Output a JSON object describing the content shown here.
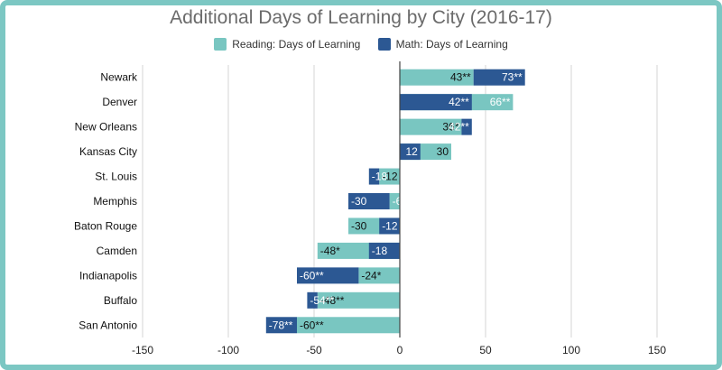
{
  "colors": {
    "reading": "#79c6c1",
    "math": "#2c5893",
    "border": "#7cc7c3",
    "grid": "#d6d6d6",
    "axis": "#444444"
  },
  "chart_data": {
    "type": "bar",
    "orientation": "horizontal",
    "stacked": "overlay",
    "title": "Additional Days of Learning by City (2016-17)",
    "legend_position": "top",
    "grid": true,
    "xlim": [
      -150,
      150
    ],
    "x_ticks": [
      "-150",
      "-100",
      "-50",
      "0",
      "50",
      "100",
      "150"
    ],
    "x_tick_values": [
      -150,
      -100,
      -50,
      0,
      50,
      100,
      150
    ],
    "categories": [
      "Newark",
      "Denver",
      "New Orleans",
      "Kansas City",
      "St. Louis",
      "Memphis",
      "Baton Rouge",
      "Camden",
      "Indianapolis",
      "Buffalo",
      "San Antonio"
    ],
    "series": [
      {
        "name": "Reading: Days of Learning",
        "color": "#79c6c1",
        "values": [
          43,
          66,
          36,
          30,
          -12,
          -6,
          -30,
          -48,
          -24,
          -48,
          -60
        ],
        "labels": [
          "43**",
          "66**",
          "36*",
          "30",
          "-12",
          "-6",
          "-30",
          "-48*",
          "-24*",
          "-48**",
          "-60**"
        ]
      },
      {
        "name": "Math: Days of Learning",
        "color": "#2c5893",
        "values": [
          73,
          42,
          42,
          12,
          -18,
          -30,
          -12,
          -18,
          -60,
          -54,
          -78
        ],
        "labels": [
          "73**",
          "42**",
          "42**",
          "12",
          "-18",
          "-30",
          "-12",
          "-18",
          "-60**",
          "-54**",
          "-78**"
        ]
      }
    ]
  }
}
